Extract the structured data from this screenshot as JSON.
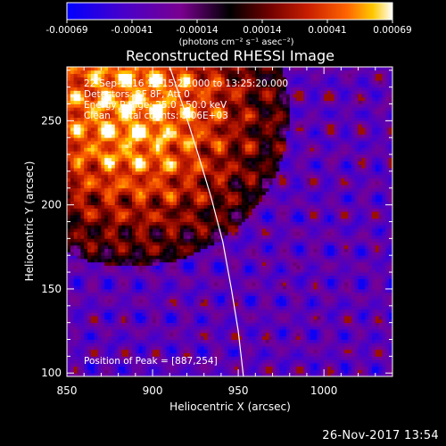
{
  "colorbar": {
    "tick_labels": [
      "-0.00069",
      "-0.00041",
      "-0.00014",
      "0.00014",
      "0.00041",
      "0.00069"
    ],
    "unit_label": "(photons cm⁻² s⁻¹ asec⁻²)",
    "range": [
      -0.00069,
      0.00069
    ],
    "colormap": [
      "#0000ff",
      "#4a00c8",
      "#7a0090",
      "#000000",
      "#6e0000",
      "#c81e00",
      "#ff6400",
      "#ffc800",
      "#ffffff"
    ]
  },
  "chart_data": {
    "type": "heatmap",
    "title": "Reconstructed RHESSI Image",
    "xlabel": "Heliocentric X (arcsec)",
    "ylabel": "Heliocentric Y (arcsec)",
    "x_ticks": [
      "850",
      "900",
      "950",
      "1000"
    ],
    "y_ticks": [
      "100",
      "150",
      "200",
      "250"
    ],
    "xlim": [
      850,
      1040
    ],
    "ylim": [
      98,
      282
    ],
    "grid": false,
    "annotations": [
      "22-Sep-2016 13:15:20.000 to 13:25:20.000",
      "Detectors: 3F 8F, Att 0",
      "Energy Range: 25.0 - 50.0 keV",
      "Clean   Total counts: 5.06E+03"
    ],
    "peak_label": "Position of Peak = [887,254]",
    "peak_position": [
      887,
      254
    ],
    "value_range": [
      -0.00069,
      0.00069
    ],
    "bright_region": "upper-left",
    "limb_curve": {
      "x": [
        910,
        918,
        926,
        934,
        941,
        946,
        950,
        953
      ],
      "y": [
        282,
        258,
        232,
        205,
        178,
        150,
        125,
        98
      ]
    }
  },
  "timestamp": "26-Nov-2017 13:54"
}
